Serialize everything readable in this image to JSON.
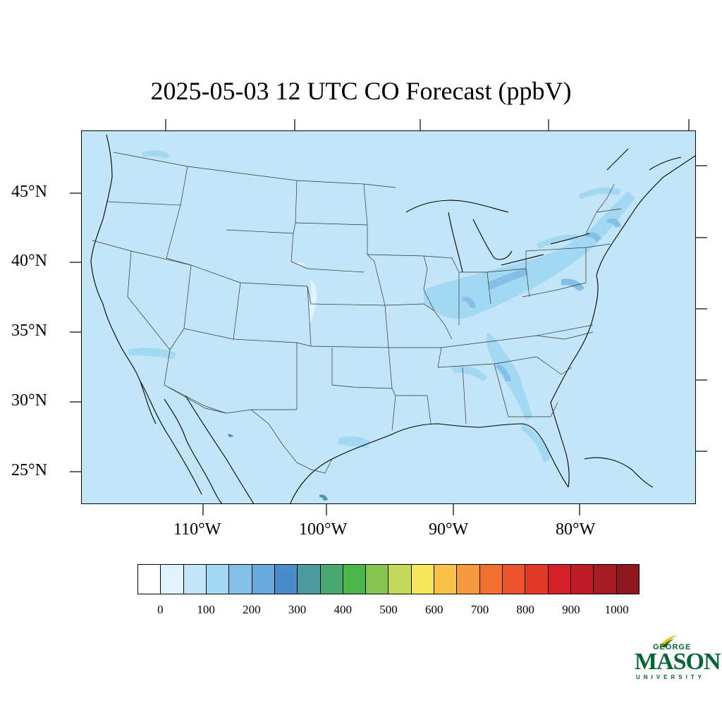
{
  "title": "2025-05-03 12 UTC CO Forecast (ppbV)",
  "lat_labels": [
    "45°N",
    "40°N",
    "35°N",
    "30°N",
    "25°N"
  ],
  "lon_labels": [
    "110°W",
    "100°W",
    "90°W",
    "80°W"
  ],
  "colorbar": {
    "colors": [
      "#ffffff",
      "#def3fb",
      "#c2e6f7",
      "#a3d8f3",
      "#84c0e6",
      "#68a8db",
      "#4a8cca",
      "#4a9ba0",
      "#47a872",
      "#4ab54b",
      "#86c450",
      "#c4d959",
      "#f7e65c",
      "#f8c249",
      "#f59b3e",
      "#f06f2f",
      "#e9542a",
      "#e33a26",
      "#d52129",
      "#bf1c26",
      "#a61c22",
      "#8e171b"
    ],
    "labels": [
      "0",
      "100",
      "200",
      "300",
      "400",
      "500",
      "600",
      "700",
      "800",
      "900",
      "1000"
    ]
  },
  "map": {
    "background_color": "#c2e6f7",
    "elevated_color": "#a3d8f3",
    "higher_color": "#84c0e6",
    "peak_color": "#4a9ba0",
    "projection": "Lambert conformal — CONUS"
  },
  "logo": {
    "line1": "GEORGE",
    "line2": "MASON",
    "line3": "UNIVERSITY"
  }
}
